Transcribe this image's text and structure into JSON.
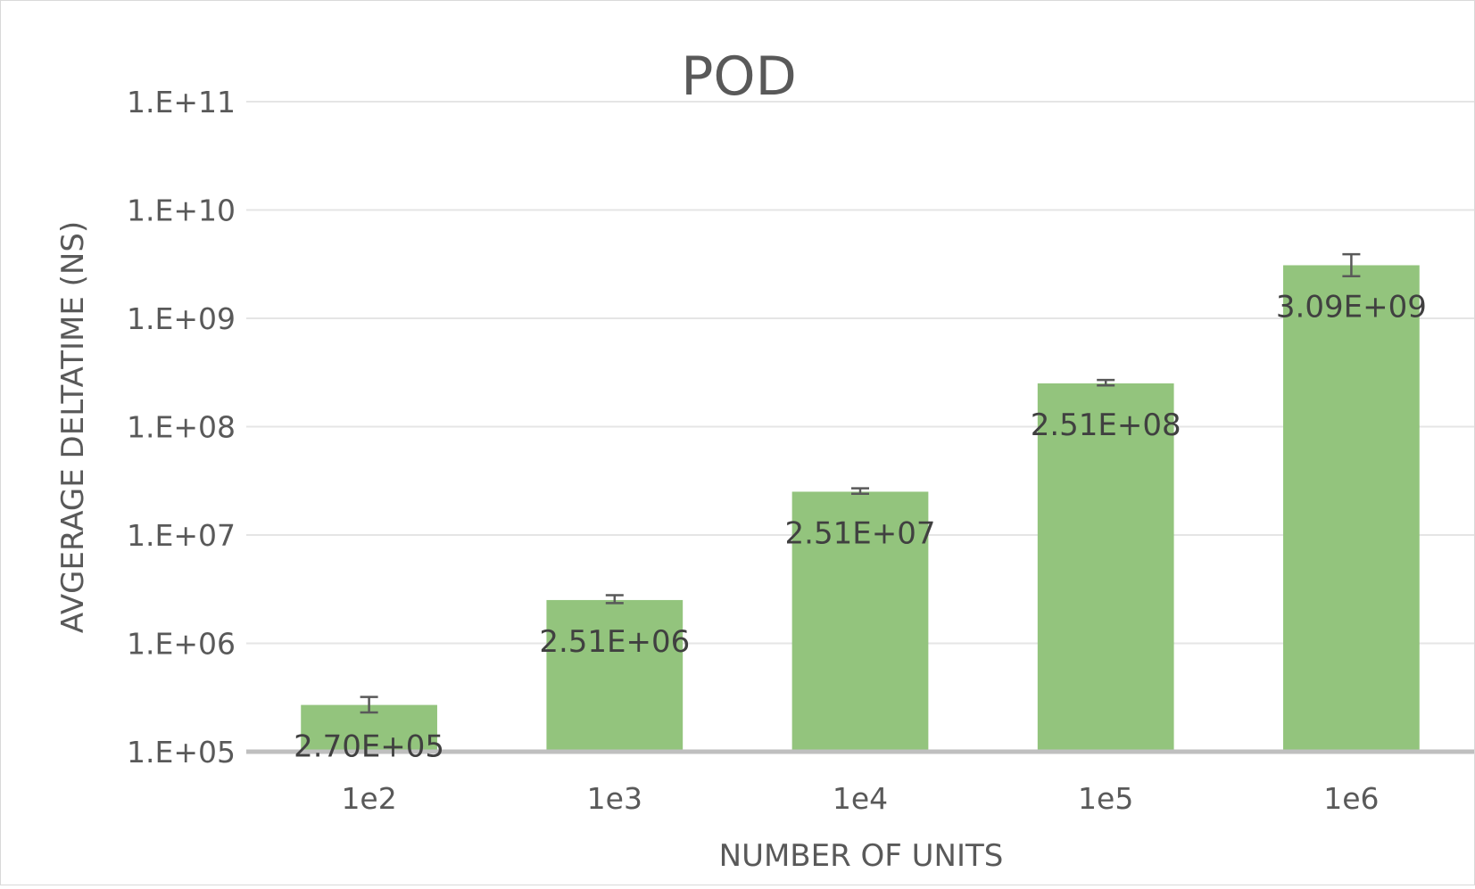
{
  "chart_data": {
    "type": "bar",
    "title": "POD",
    "xlabel": "NUMBER OF UNITS",
    "ylabel": "AVGERAGE DELTATIME (NS)",
    "y_scale": "log",
    "ylim": [
      100000,
      100000000000
    ],
    "grid": true,
    "legend": "none",
    "categories": [
      "1e2",
      "1e3",
      "1e4",
      "1e5",
      "1e6"
    ],
    "values": [
      270000,
      2510000,
      25100000,
      251000000,
      3090000000
    ],
    "error_low": [
      230000,
      2350000,
      24000000,
      240000000,
      2450000000
    ],
    "error_high": [
      320000,
      2780000,
      27000000,
      270000000,
      3900000000
    ],
    "data_labels": [
      "2.70E+05",
      "2.51E+06",
      "2.51E+07",
      "2.51E+08",
      "3.09E+09"
    ],
    "y_tick_values": [
      100000,
      1000000,
      10000000,
      100000000,
      1000000000,
      10000000000,
      100000000000
    ],
    "y_tick_labels": [
      "1.E+05",
      "1.E+06",
      "1.E+07",
      "1.E+08",
      "1.E+09",
      "1.E+10",
      "1.E+11"
    ],
    "bar_color": "#93c47d",
    "error_bar_color": "#595959",
    "gridline_color": "#e5e5e5",
    "axis_line_color": "#bfbfbf",
    "text_color": "#595959",
    "data_label_color": "#404040"
  }
}
